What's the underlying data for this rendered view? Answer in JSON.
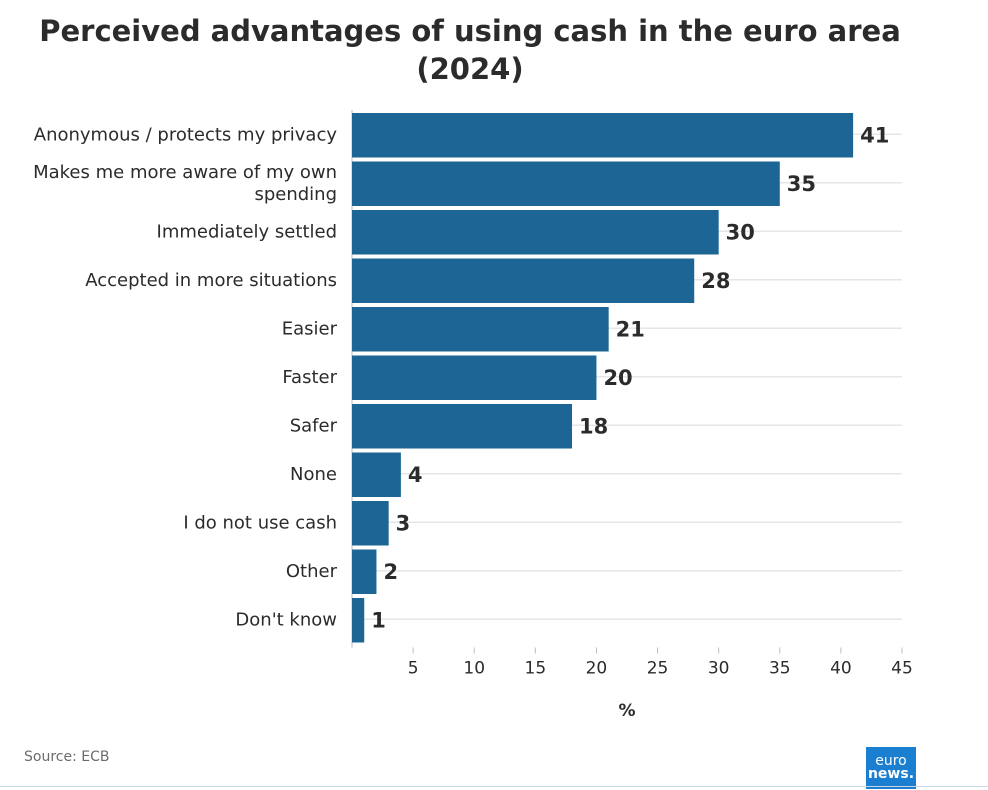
{
  "title_lines": [
    "Perceived advantages of using cash in the euro area",
    "(2024)"
  ],
  "source": "Source: ECB",
  "logo": {
    "line1": "euro",
    "line2": "news."
  },
  "colors": {
    "bar": "#1c6595",
    "grid": "#e6e6e6",
    "text": "#2b2b2b"
  },
  "chart_data": {
    "type": "bar",
    "orientation": "horizontal",
    "title": "Perceived advantages of using cash in the euro area (2024)",
    "categories": [
      "Anonymous / protects my privacy",
      "Makes me more aware of my own spending",
      "Immediately settled",
      "Accepted in more situations",
      "Easier",
      "Faster",
      "Safer",
      "None",
      "I do not use cash",
      "Other",
      "Don't know"
    ],
    "category_label_lines": [
      [
        "Anonymous / protects my privacy"
      ],
      [
        "Makes me more aware of my own",
        "spending"
      ],
      [
        "Immediately settled"
      ],
      [
        "Accepted in more situations"
      ],
      [
        "Easier"
      ],
      [
        "Faster"
      ],
      [
        "Safer"
      ],
      [
        "None"
      ],
      [
        "I do not use cash"
      ],
      [
        "Other"
      ],
      [
        "Don't know"
      ]
    ],
    "values": [
      41,
      35,
      30,
      28,
      21,
      20,
      18,
      4,
      3,
      2,
      1
    ],
    "data_labels": [
      "41",
      "35",
      "30",
      "28",
      "21",
      "20",
      "18",
      "4",
      "3",
      "2",
      "1"
    ],
    "xlabel": "%",
    "ylabel": "",
    "xlim": [
      0,
      45
    ],
    "xticks": [
      5,
      10,
      15,
      20,
      25,
      30,
      35,
      40,
      45
    ],
    "grid": true,
    "legend": "none"
  }
}
